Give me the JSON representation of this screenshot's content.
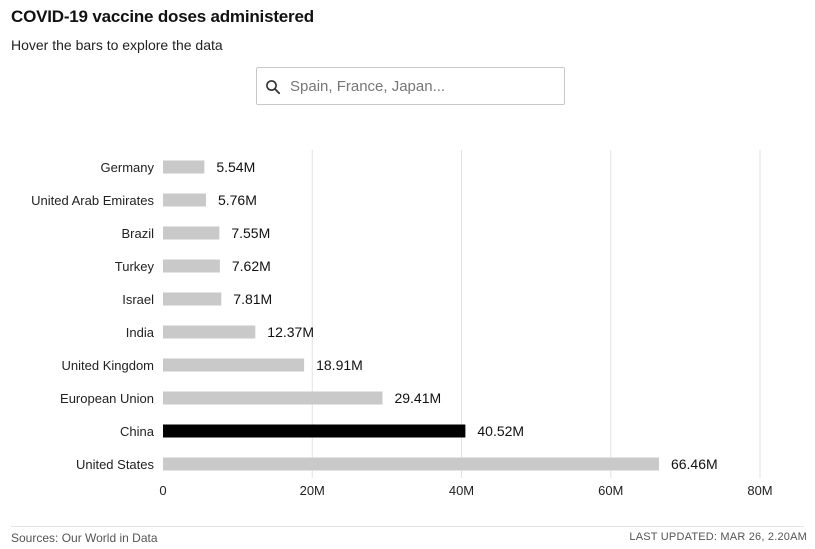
{
  "header": {
    "title": "COVID-19 vaccine doses administered",
    "subtitle": "Hover the bars to explore the data"
  },
  "search": {
    "placeholder": "Spain, France, Japan...",
    "value": ""
  },
  "colors": {
    "bar": "#c9c9c9",
    "highlight": "#000000",
    "grid": "#e2e2e2"
  },
  "chart_data": {
    "type": "bar",
    "orientation": "horizontal",
    "categories": [
      "Germany",
      "United Arab Emirates",
      "Brazil",
      "Turkey",
      "Israel",
      "India",
      "United Kingdom",
      "European Union",
      "China",
      "United States"
    ],
    "values": [
      5.54,
      5.76,
      7.55,
      7.62,
      7.81,
      12.37,
      18.91,
      29.41,
      40.52,
      66.46
    ],
    "value_labels": [
      "5.54M",
      "5.76M",
      "7.55M",
      "7.62M",
      "7.81M",
      "12.37M",
      "18.91M",
      "29.41M",
      "40.52M",
      "66.46M"
    ],
    "highlighted": "China",
    "xlim": [
      0,
      80
    ],
    "xticks": [
      0,
      20,
      40,
      60,
      80
    ],
    "xtick_labels": [
      "0",
      "20M",
      "40M",
      "60M",
      "80M"
    ],
    "grid": true
  },
  "footer": {
    "source": "Sources: Our World in Data",
    "updated": "LAST UPDATED: MAR 26, 2.20AM"
  }
}
